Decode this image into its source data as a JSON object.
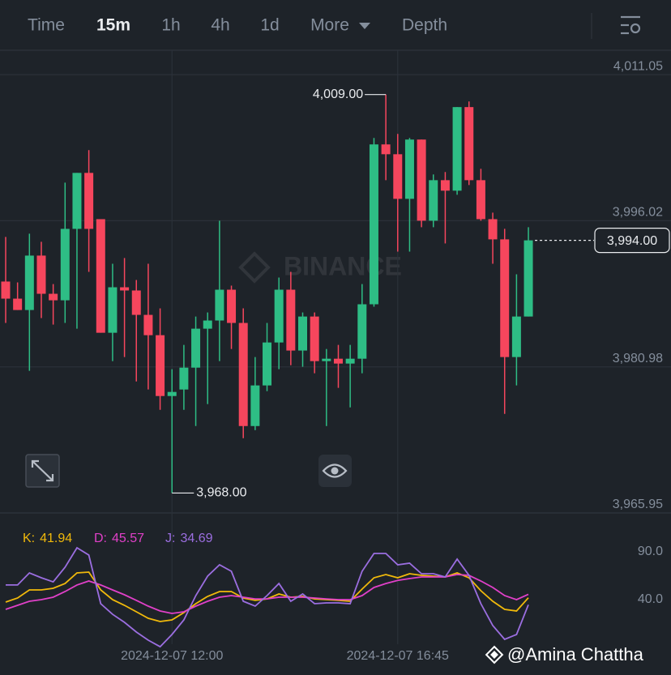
{
  "tabs": [
    "Time",
    "15m",
    "1h",
    "4h",
    "1d",
    "More",
    "Depth"
  ],
  "active_tab": 1,
  "watermark": "BINANCE",
  "credit": "@Amina Chattha",
  "chart_data": [
    {
      "type": "candlestick",
      "categories": [
        null,
        null,
        null,
        null,
        null,
        null,
        null,
        null,
        null,
        null,
        null,
        null,
        null,
        null,
        "2024-12-07 12:00",
        null,
        null,
        null,
        null,
        null,
        null,
        null,
        null,
        null,
        null,
        null,
        null,
        null,
        null,
        null,
        null,
        null,
        null,
        "2024-12-07 16:45",
        null,
        null,
        null,
        null,
        null,
        null,
        null,
        null,
        null,
        null,
        null
      ],
      "open": [
        3989.76,
        3988.0,
        3986.83,
        3992.43,
        3988.5,
        3987.83,
        3995.18,
        4000.94,
        3996.18,
        3984.49,
        3989.17,
        3988.84,
        3986.33,
        3984.24,
        3977.98,
        3978.65,
        3980.9,
        3984.91,
        3985.75,
        3988.92,
        3985.5,
        3974.89,
        3979.07,
        3983.49,
        3988.92,
        3982.66,
        3986.16,
        3981.57,
        3981.82,
        3981.32,
        3981.82,
        3987.42,
        4003.87,
        4002.86,
        3998.27,
        4004.37,
        3996.02,
        4000.19,
        3999.11,
        4007.71,
        4000.19,
        3996.18,
        3994.1,
        3981.99,
        3986.16
      ],
      "high": [
        3994.35,
        3989.67,
        3994.68,
        3993.85,
        3989.5,
        3999.94,
        4000.94,
        4003.28,
        3996.18,
        3991.59,
        3992.18,
        3989.92,
        3991.59,
        3987.0,
        3980.74,
        3983.24,
        3986.16,
        3986.58,
        3996.02,
        3989.34,
        3987.0,
        3981.99,
        3985.5,
        3990.17,
        3990.76,
        3986.58,
        3986.58,
        3982.82,
        3983.24,
        3983.24,
        3989.5,
        4004.53,
        4009.0,
        4004.95,
        4004.53,
        4004.37,
        4000.78,
        4001.03,
        4007.71,
        4008.29,
        4001.36,
        3996.85,
        3995.18,
        3990.51,
        3995.35
      ],
      "low": [
        3985.5,
        3986.83,
        3980.57,
        3986.0,
        3985.33,
        3985.5,
        3984.91,
        3990.76,
        3984.49,
        3981.57,
        3981.99,
        3979.48,
        3978.65,
        3976.56,
        3968.0,
        3976.56,
        3974.89,
        3977.15,
        3981.57,
        3982.82,
        3973.64,
        3974.47,
        3978.48,
        3980.74,
        3981.15,
        3980.99,
        3980.32,
        3974.89,
        3978.82,
        3976.81,
        3980.32,
        3987.17,
        4000.19,
        3992.84,
        3992.84,
        3995.35,
        3995.35,
        3993.68,
        3998.69,
        3999.69,
        3996.02,
        3991.59,
        3976.14,
        3979.07,
        3986.16
      ],
      "close": [
        3988.0,
        3986.83,
        3992.43,
        3988.5,
        3987.83,
        3995.18,
        4000.94,
        3995.18,
        3984.49,
        3989.17,
        3988.84,
        3986.33,
        3984.24,
        3977.98,
        3978.4,
        3980.9,
        3984.91,
        3985.75,
        3988.92,
        3985.5,
        3974.89,
        3979.07,
        3983.49,
        3988.92,
        3982.66,
        3986.16,
        3981.57,
        3981.82,
        3981.32,
        3981.82,
        3987.42,
        4003.87,
        4002.86,
        3998.27,
        4004.37,
        3996.02,
        4000.19,
        3999.11,
        4007.71,
        4000.19,
        3996.18,
        3994.1,
        3981.99,
        3986.16,
        3994.0
      ],
      "up_color": "#2ebd85",
      "down_color": "#f6465d",
      "ylim": [
        3965.95,
        4013.56
      ],
      "yticks": [
        {
          "value": 4011.05,
          "label": "4,011.05"
        },
        {
          "value": 3996.02,
          "label": "3,996.02"
        },
        {
          "value": 3980.98,
          "label": "3,980.98"
        },
        {
          "value": 3965.95,
          "label": "3,965.95"
        }
      ],
      "grid": true,
      "high_label": {
        "value": 4009.0,
        "label": "4,009.00"
      },
      "low_label": {
        "value": 3968.0,
        "label": "3,968.00"
      },
      "last_price": {
        "value": 3994.0,
        "label": "3,994.00"
      }
    },
    {
      "type": "line",
      "ylim": [
        -10,
        120
      ],
      "yticks": [
        {
          "value": 90,
          "label": "90.0"
        },
        {
          "value": 40,
          "label": "40.0"
        }
      ],
      "series": [
        {
          "name": "K:",
          "color": "#f0b90b",
          "values": [
            37.5,
            41.7,
            50.2,
            50.2,
            51.9,
            56.9,
            68.0,
            68.8,
            50.2,
            40.0,
            34.1,
            27.3,
            20.5,
            17.1,
            18.8,
            26.4,
            35.8,
            43.4,
            48.5,
            48.5,
            41.7,
            39.2,
            40.8,
            45.9,
            42.5,
            43.4,
            40.8,
            40.0,
            39.2,
            38.3,
            51.0,
            62.9,
            66.3,
            62.9,
            67.1,
            65.4,
            64.6,
            63.7,
            68.0,
            62.9,
            49.3,
            38.3,
            29.8,
            28.1,
            41.94
          ]
        },
        {
          "name": "D:",
          "color": "#e040c8",
          "values": [
            29.8,
            34.1,
            38.3,
            40.0,
            42.5,
            48.5,
            55.3,
            59.5,
            55.3,
            50.2,
            45.1,
            39.2,
            33.2,
            28.1,
            25.6,
            27.3,
            33.2,
            38.3,
            42.5,
            44.2,
            42.5,
            40.8,
            40.8,
            42.5,
            42.5,
            42.5,
            41.7,
            40.8,
            40.0,
            40.0,
            44.2,
            52.7,
            56.9,
            60.2,
            62.0,
            63.7,
            63.7,
            63.7,
            66.3,
            65.4,
            59.5,
            52.7,
            44.2,
            40.0,
            45.57
          ]
        },
        {
          "name": "J:",
          "color": "#9b6ee0",
          "values": [
            55.3,
            55.3,
            68.0,
            62.9,
            58.6,
            73.9,
            94.2,
            86.6,
            35.8,
            24.7,
            16.3,
            6.1,
            -2.4,
            -9.2,
            3.6,
            18.8,
            44.2,
            64.6,
            76.4,
            69.7,
            38.3,
            33.2,
            44.2,
            56.9,
            38.3,
            45.9,
            35.8,
            36.6,
            36.6,
            35.8,
            69.7,
            88.3,
            88.3,
            76.4,
            78.1,
            67.1,
            67.1,
            63.7,
            82.4,
            65.4,
            35.8,
            12.9,
            -1.5,
            3.6,
            34.69
          ]
        }
      ]
    }
  ]
}
